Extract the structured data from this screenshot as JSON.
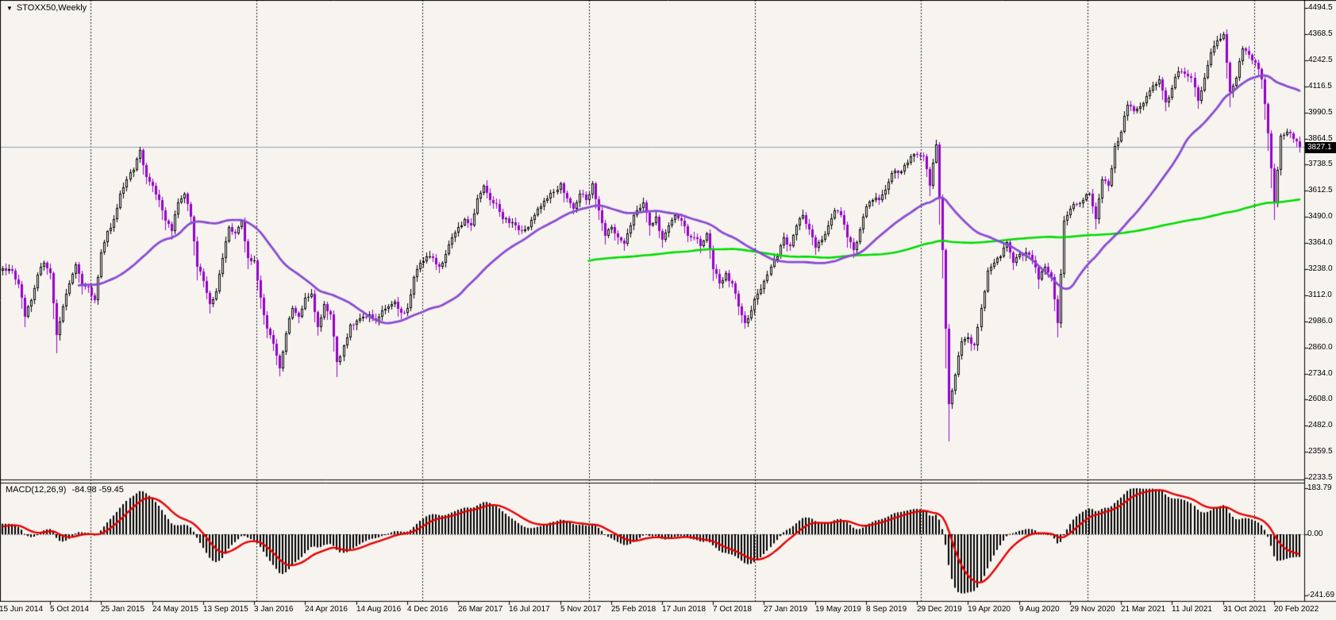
{
  "window": {
    "symbol_label": "STOXX50,Weekly",
    "dropdown_icon": "▼"
  },
  "price_axis": {
    "labels": [
      "4494.5",
      "4368.5",
      "4242.5",
      "4116.5",
      "3990.5",
      "3864.5",
      "3738.5",
      "3612.5",
      "3490.0",
      "3364.0",
      "3238.0",
      "3112.0",
      "2986.0",
      "2860.0",
      "2734.0",
      "2608.0",
      "2482.0",
      "2359.5",
      "2233.5"
    ],
    "current_price": "3827.1"
  },
  "date_axis": {
    "labels": [
      "15 Jun 2014",
      "5 Oct 2014",
      "25 Jan 2015",
      "24 May 2015",
      "13 Sep 2015",
      "3 Jan 2016",
      "24 Apr 2016",
      "14 Aug 2016",
      "4 Dec 2016",
      "26 Mar 2017",
      "16 Jul 2017",
      "5 Nov 2017",
      "25 Feb 2018",
      "17 Jun 2018",
      "7 Oct 2018",
      "27 Jan 2019",
      "19 May 2019",
      "8 Sep 2019",
      "29 Dec 2019",
      "19 Apr 2020",
      "9 Aug 2020",
      "29 Nov 2020",
      "21 Mar 2021",
      "11 Jul 2021",
      "31 Oct 2021",
      "20 Feb 2022"
    ]
  },
  "macd_panel": {
    "label": "MACD(12,26,9)",
    "values": "-84.98 -59.45",
    "axis_labels": [
      "183.79",
      "0.00",
      "-241.69"
    ]
  },
  "colors": {
    "background": "#F7F4F0",
    "frame": "#000000",
    "bull_candle": "#FFFFFF",
    "bull_outline": "#000000",
    "bear_candle": "#9400C8",
    "ma_fast": "#8A4BD1",
    "ma_slow": "#00DC00",
    "price_line": "#8FA3B5",
    "macd_histogram": "#000000",
    "macd_signal": "#E60000",
    "separator": "#222222"
  },
  "chart_data": {
    "type": "candlestick",
    "symbol": "STOXX50",
    "timeframe": "Weekly",
    "title": "STOXX50,Weekly",
    "ylim": [
      2233.5,
      4494.5
    ],
    "y_tick_step": 126,
    "x_start_label": "15 Jun 2014",
    "x_end_label": "20 Feb 2022",
    "grid": "yearly-dashed-separators",
    "legend_position": "none",
    "current_price": 3827.1,
    "indicators": {
      "ma_fast": {
        "type": "SMA",
        "period_weeks": 40
      },
      "ma_slow": {
        "type": "SMA",
        "period_weeks": 200
      },
      "macd": {
        "fast": 12,
        "slow": 26,
        "signal": 9,
        "current_macd": -84.98,
        "current_signal": -59.45,
        "axis_max": 183.79,
        "axis_min": -241.69
      }
    },
    "prehistory_biweekly_closes": [
      3090,
      3140,
      3090,
      3150,
      3170,
      3210,
      3250,
      3230
    ],
    "biweekly_closes_by_year": {
      "2014": [
        3230,
        3230,
        3165,
        3010,
        3090,
        3210,
        3270,
        3220,
        2920,
        3060,
        3170,
        3260,
        3160,
        3150
      ],
      "2015": [
        3090,
        3320,
        3420,
        3480,
        3600,
        3670,
        3715,
        3810,
        3680,
        3640,
        3570,
        3470,
        3420,
        3560,
        3600,
        3490,
        3250,
        3180,
        3070,
        3130,
        3290,
        3440,
        3410,
        3470,
        3290,
        3280
      ],
      "2016": [
        3100,
        2950,
        2880,
        2760,
        2930,
        3050,
        3010,
        3100,
        3120,
        2960,
        3070,
        3020,
        2790,
        2870,
        2970,
        2990,
        3010,
        3020,
        2990,
        3040,
        3060,
        3080,
        3030,
        3050,
        3200,
        3270
      ],
      "2017": [
        3300,
        3290,
        3250,
        3310,
        3390,
        3440,
        3480,
        3450,
        3580,
        3640,
        3570,
        3550,
        3480,
        3460,
        3450,
        3420,
        3440,
        3500,
        3540,
        3580,
        3610,
        3650,
        3580,
        3530,
        3600,
        3570
      ],
      "2018": [
        3650,
        3520,
        3400,
        3440,
        3390,
        3360,
        3450,
        3520,
        3560,
        3450,
        3490,
        3380,
        3450,
        3500,
        3470,
        3400,
        3390,
        3350,
        3410,
        3240,
        3170,
        3220,
        3170,
        3060,
        2980,
        3040
      ],
      "2019": [
        3120,
        3180,
        3250,
        3300,
        3390,
        3350,
        3450,
        3500,
        3430,
        3340,
        3380,
        3450,
        3520,
        3500,
        3390,
        3330,
        3430,
        3540,
        3570,
        3570,
        3620,
        3700,
        3700,
        3740,
        3780,
        3790
      ],
      "2020": [
        3780,
        3640,
        3840,
        3330,
        2590,
        2730,
        2890,
        2910,
        2870,
        3050,
        3230,
        3270,
        3300,
        3370,
        3270,
        3310,
        3320,
        3280,
        3190,
        3250,
        3200,
        2980,
        3470,
        3530,
        3550,
        3570
      ],
      "2021": [
        3600,
        3480,
        3670,
        3640,
        3830,
        3900,
        4030,
        4000,
        4020,
        4070,
        4120,
        4150,
        4040,
        4110,
        4190,
        4180,
        4160,
        4050,
        4160,
        4280,
        4340,
        4370,
        4090,
        4160,
        4300,
        4270
      ],
      "2022": [
        4230,
        4150,
        3890,
        3560,
        3880,
        3900,
        3864,
        3827
      ]
    }
  }
}
